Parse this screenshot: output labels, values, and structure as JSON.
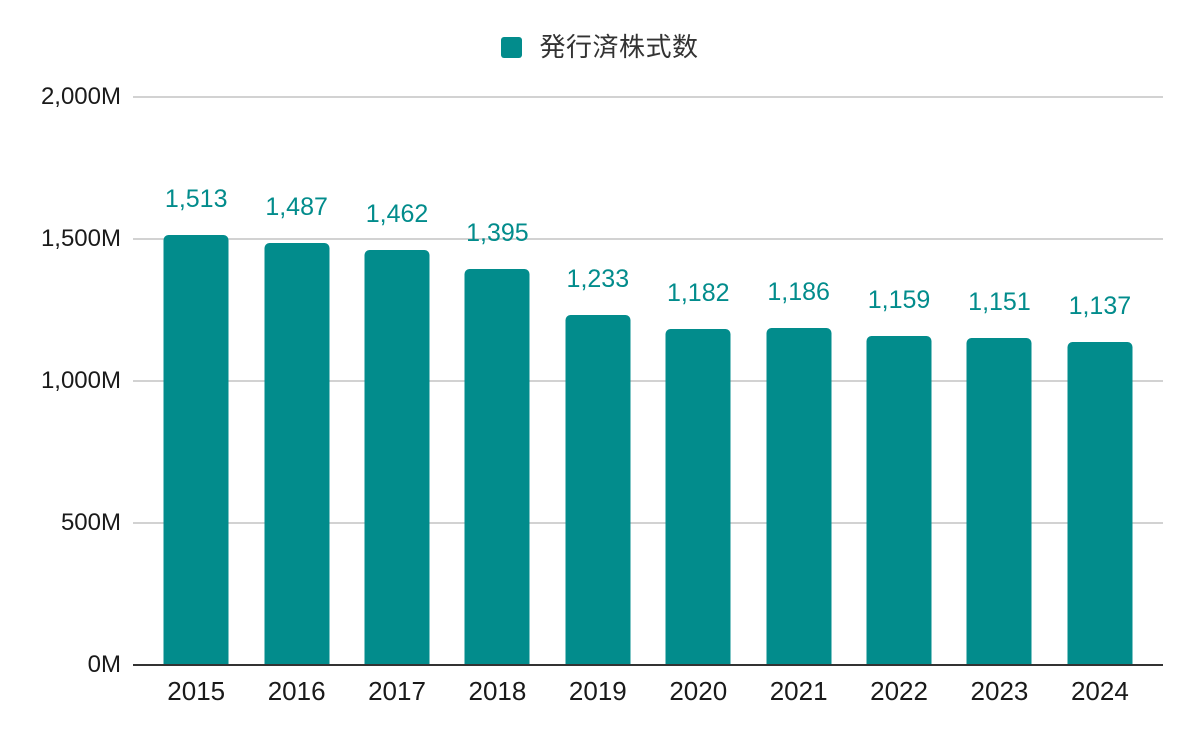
{
  "chart_data": {
    "type": "bar",
    "title": "",
    "series": [
      {
        "name": "発行済株式数",
        "values": [
          1513,
          1487,
          1462,
          1395,
          1233,
          1182,
          1186,
          1159,
          1151,
          1137
        ]
      }
    ],
    "categories": [
      "2015",
      "2016",
      "2017",
      "2018",
      "2019",
      "2020",
      "2021",
      "2022",
      "2023",
      "2024"
    ],
    "value_labels": [
      "1,513",
      "1,487",
      "1,462",
      "1,395",
      "1,233",
      "1,182",
      "1,186",
      "1,159",
      "1,151",
      "1,137"
    ],
    "xlabel": "",
    "ylabel": "",
    "ylim": [
      0,
      2000
    ],
    "yticks": [
      {
        "value": 0,
        "label": "0M"
      },
      {
        "value": 500,
        "label": "500M"
      },
      {
        "value": 1000,
        "label": "1,000M"
      },
      {
        "value": 1500,
        "label": "1,500M"
      },
      {
        "value": 2000,
        "label": "2,000M"
      }
    ],
    "grid": true,
    "legend_position": "top",
    "colors": {
      "bar": "#028c8c",
      "value_label": "#028c8c",
      "gridline": "#d2d2d2",
      "axis_line": "#333333",
      "axis_text": "#1a1a1a",
      "legend_text": "#333333",
      "background": "#ffffff"
    }
  }
}
